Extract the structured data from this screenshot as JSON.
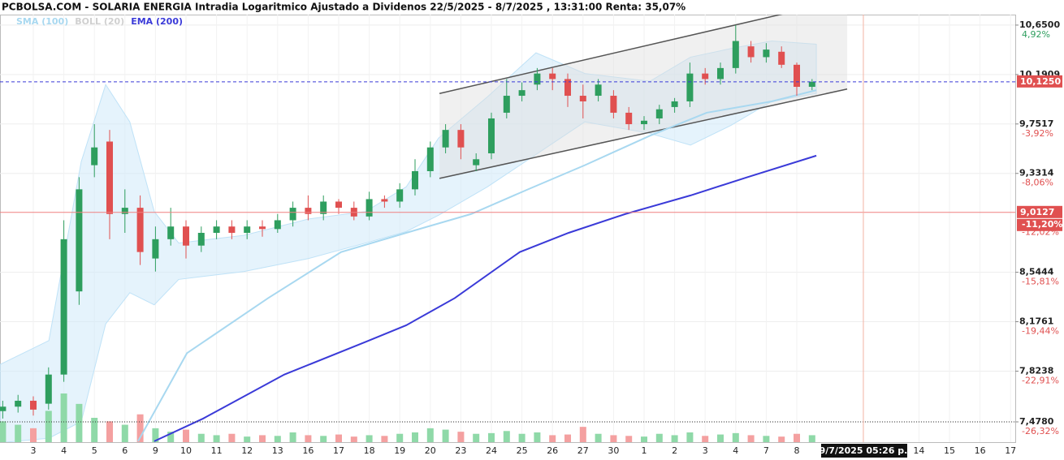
{
  "chart_data": {
    "type": "candlestick",
    "title": "PCBOLSA.COM - SOLARIA ENERGIA Intradia Logaritmico Ajustado a Dividenos 22/5/2025 - 8/7/2025 , 13:31:00 Renta: 35,07%",
    "legend": [
      {
        "name": "SMA (100)",
        "color": "#a8d8f0"
      },
      {
        "name": "BOLL (20)",
        "color": "#d0d0d0"
      },
      {
        "name": "EMA (200)",
        "color": "#3a3ad8"
      }
    ],
    "log_scale": true,
    "grid": true,
    "categories": [
      "3",
      "4",
      "5",
      "6",
      "9",
      "10",
      "11",
      "12",
      "13",
      "16",
      "17",
      "18",
      "19",
      "20",
      "23",
      "24",
      "25",
      "26",
      "27",
      "30",
      "1",
      "2",
      "3",
      "4",
      "7",
      "8",
      null,
      null,
      null,
      "14",
      "15",
      "16",
      "17"
    ],
    "ylim": [
      7.344,
      10.75
    ],
    "yticks": [
      {
        "value": 10.65,
        "label": "10,6500"
      },
      {
        "value": 10.1909,
        "label": "10,1909"
      },
      {
        "value": 9.7517,
        "label": "9,7517"
      },
      {
        "value": 9.3314,
        "label": "9,3314"
      },
      {
        "value": 8.5444,
        "label": "8,5444"
      },
      {
        "value": 8.1761,
        "label": "8,1761"
      },
      {
        "value": 7.8238,
        "label": "7,8238"
      },
      {
        "value": 7.478,
        "label": "7,4780"
      }
    ],
    "pct_ticks": [
      {
        "value": 10.65,
        "label": "4,92%"
      },
      {
        "value": 9.7517,
        "label": "-3,92%"
      },
      {
        "value": 9.3314,
        "label": "-8,06%"
      },
      {
        "value": 8.93,
        "label": "-12,02%"
      },
      {
        "value": 8.5444,
        "label": "-15,81%"
      },
      {
        "value": 8.1761,
        "label": "-19,44%"
      },
      {
        "value": 7.8238,
        "label": "-22,91%"
      },
      {
        "value": 7.478,
        "label": "-26,32%"
      }
    ],
    "price_lines": [
      {
        "value": 10.125,
        "label": "10,1250",
        "color": "#3a3ad8"
      },
      {
        "value": 9.0127,
        "label": "9,0127",
        "pct_label": "-11,20%",
        "color": "#f08080"
      }
    ],
    "cursor": {
      "x": 27.18,
      "label": "9/7/2025 05:26 p."
    },
    "up_color": "#2e9e5e",
    "down_color": "#e05050",
    "candles": {
      "x": [
        -1,
        -0.5,
        0,
        0.5,
        1,
        1.5,
        2,
        2.5,
        3,
        3.5,
        4,
        4.5,
        5,
        5.5,
        6,
        6.5,
        7,
        7.5,
        8,
        8.5,
        9,
        9.5,
        10,
        10.5,
        11,
        11.5,
        12,
        12.5,
        13,
        13.5,
        14,
        14.5,
        15,
        15.5,
        16,
        16.5,
        17,
        17.5,
        18,
        18.5,
        19,
        19.5,
        20,
        20.5,
        21,
        21.5,
        22,
        22.5,
        23,
        23.5,
        24,
        24.5,
        25,
        25.5
      ],
      "open": [
        7.55,
        7.58,
        7.62,
        7.6,
        7.8,
        8.4,
        9.4,
        9.6,
        9.0,
        9.05,
        8.65,
        8.8,
        8.9,
        8.75,
        8.85,
        8.9,
        8.85,
        8.9,
        8.88,
        8.95,
        9.05,
        9.0,
        9.1,
        9.05,
        8.98,
        9.12,
        9.1,
        9.2,
        9.35,
        9.55,
        9.7,
        9.4,
        9.5,
        9.85,
        10.0,
        10.1,
        10.2,
        10.15,
        10.0,
        10.0,
        10.0,
        9.85,
        9.75,
        9.8,
        9.9,
        9.95,
        10.2,
        10.15,
        10.25,
        10.45,
        10.35,
        10.4,
        10.28,
        10.08
      ],
      "high": [
        7.62,
        7.66,
        7.65,
        7.85,
        8.95,
        9.3,
        9.75,
        9.7,
        9.2,
        9.15,
        8.9,
        9.05,
        8.95,
        8.9,
        8.95,
        8.95,
        8.95,
        8.95,
        9.0,
        9.1,
        9.15,
        9.15,
        9.12,
        9.1,
        9.18,
        9.15,
        9.25,
        9.45,
        9.6,
        9.75,
        9.75,
        9.5,
        9.85,
        10.15,
        10.12,
        10.25,
        10.25,
        10.2,
        10.1,
        10.15,
        10.05,
        9.9,
        9.82,
        9.92,
        9.98,
        10.3,
        10.25,
        10.3,
        10.65,
        10.5,
        10.48,
        10.45,
        10.3,
        10.15
      ],
      "low": [
        7.5,
        7.54,
        7.52,
        7.56,
        7.75,
        8.3,
        9.3,
        8.8,
        8.85,
        8.6,
        8.55,
        8.75,
        8.65,
        8.7,
        8.8,
        8.8,
        8.8,
        8.82,
        8.85,
        8.9,
        8.95,
        8.95,
        9.0,
        8.95,
        8.95,
        9.05,
        9.05,
        9.15,
        9.3,
        9.5,
        9.45,
        9.35,
        9.45,
        9.8,
        9.95,
        10.05,
        10.05,
        9.9,
        9.8,
        9.95,
        9.8,
        9.7,
        9.7,
        9.75,
        9.85,
        9.9,
        10.1,
        10.1,
        10.2,
        10.3,
        10.3,
        10.25,
        10.0,
        10.05
      ],
      "close": [
        7.58,
        7.62,
        7.56,
        7.8,
        8.8,
        9.2,
        9.55,
        9.0,
        9.05,
        8.7,
        8.8,
        8.9,
        8.75,
        8.85,
        8.9,
        8.85,
        8.9,
        8.88,
        8.95,
        9.05,
        9.0,
        9.1,
        9.05,
        8.98,
        9.12,
        9.1,
        9.2,
        9.35,
        9.55,
        9.7,
        9.55,
        9.45,
        9.8,
        10.0,
        10.05,
        10.2,
        10.15,
        10.0,
        9.95,
        10.1,
        9.85,
        9.75,
        9.78,
        9.88,
        9.95,
        10.2,
        10.15,
        10.25,
        10.5,
        10.35,
        10.42,
        10.28,
        10.08,
        10.125
      ],
      "volume": [
        30,
        25,
        20,
        45,
        70,
        55,
        35,
        30,
        25,
        40,
        20,
        15,
        18,
        12,
        10,
        12,
        8,
        10,
        9,
        14,
        10,
        9,
        11,
        8,
        10,
        9,
        12,
        14,
        20,
        18,
        15,
        12,
        13,
        16,
        12,
        14,
        10,
        11,
        22,
        12,
        10,
        9,
        8,
        12,
        10,
        14,
        9,
        11,
        13,
        10,
        9,
        8,
        12,
        10
      ]
    },
    "boll": {
      "color": "#cfe9fa",
      "x": [
        -1.09,
        0.51,
        1.57,
        2.37,
        3.16,
        3.96,
        4.76,
        6.89,
        9.02,
        10.88,
        12.21,
        13.27,
        14.87,
        16.46,
        18.06,
        20.19,
        21.52,
        22.85,
        24.18,
        25.64
      ],
      "upper": [
        7.87,
        8.04,
        9.43,
        10.1,
        9.77,
        9.02,
        8.77,
        8.83,
        8.96,
        9.02,
        9.22,
        9.63,
        9.99,
        10.39,
        10.2,
        10.13,
        10.35,
        10.43,
        10.5,
        10.47
      ],
      "lower": [
        7.34,
        7.37,
        7.48,
        8.16,
        8.39,
        8.3,
        8.49,
        8.55,
        8.65,
        8.77,
        8.86,
        8.99,
        9.22,
        9.49,
        9.77,
        9.67,
        9.57,
        9.74,
        9.95,
        10.02
      ]
    },
    "series": [
      {
        "name": "SMA (100)",
        "color": "#a8d8f0",
        "x": [
          3.43,
          5.03,
          7.69,
          10.08,
          12.21,
          14.34,
          16.2,
          18.06,
          20.19,
          22.05,
          24.18,
          25.64
        ],
        "values": [
          7.35,
          7.95,
          8.35,
          8.7,
          8.85,
          9.0,
          9.2,
          9.4,
          9.65,
          9.85,
          9.95,
          10.05
        ]
      },
      {
        "name": "EMA (200)",
        "color": "#3a3ad8",
        "x": [
          3.96,
          5.56,
          8.22,
          10.88,
          12.21,
          13.8,
          15.93,
          17.53,
          19.39,
          21.52,
          23.38,
          25.64
        ],
        "values": [
          7.35,
          7.5,
          7.8,
          8.03,
          8.15,
          8.35,
          8.7,
          8.85,
          9.0,
          9.15,
          9.3,
          9.48
        ]
      }
    ],
    "channel": {
      "x": [
        13.3,
        26.65
      ],
      "upper": [
        10.02,
        10.9
      ],
      "lower": [
        9.29,
        10.06
      ]
    }
  }
}
